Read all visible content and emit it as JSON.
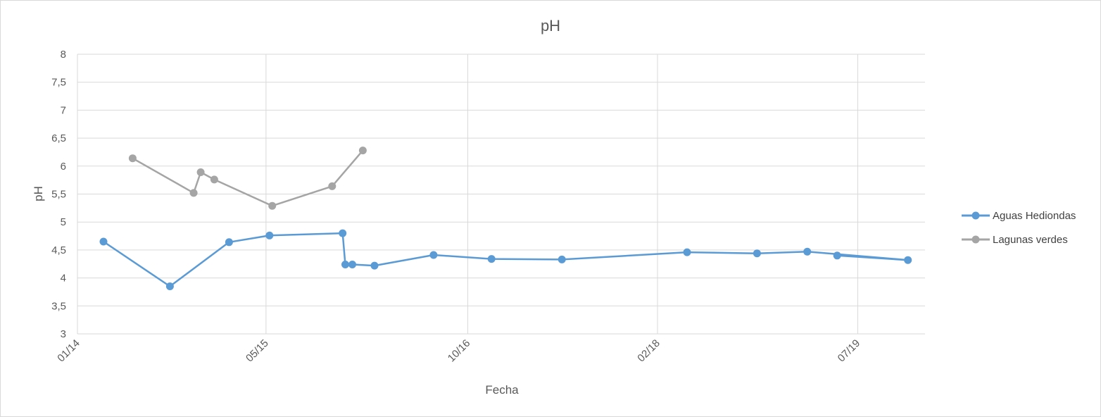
{
  "chart_data": {
    "type": "line",
    "title": "pH",
    "xlabel": "Fecha",
    "ylabel": "pH",
    "ylim": [
      3,
      8
    ],
    "yticks": [
      3,
      3.5,
      4,
      4.5,
      5,
      5.5,
      6,
      6.5,
      7,
      7.5,
      8
    ],
    "ytick_labels": [
      "3",
      "3,5",
      "4",
      "4,5",
      "5",
      "5,5",
      "6",
      "6,5",
      "7",
      "7,5",
      "8"
    ],
    "xlim": [
      "2014-01-01",
      "2019-12-21"
    ],
    "xticks": [
      "2014-01-01",
      "2015-05-01",
      "2016-10-01",
      "2018-02-01",
      "2019-07-01"
    ],
    "xtick_labels": [
      "01/14",
      "05/15",
      "10/16",
      "02/18",
      "07/19"
    ],
    "grid": true,
    "legend_position": "right",
    "series": [
      {
        "name": "Aguas Hediondas",
        "color": "#5b9bd5",
        "points": [
          [
            "2014-03-09",
            4.65
          ],
          [
            "2014-08-27",
            3.85
          ],
          [
            "2015-01-26",
            4.64
          ],
          [
            "2015-05-10",
            4.76
          ],
          [
            "2015-11-14",
            4.8
          ],
          [
            "2015-11-21",
            4.24
          ],
          [
            "2015-12-09",
            4.24
          ],
          [
            "2016-02-04",
            4.22
          ],
          [
            "2016-07-05",
            4.41
          ],
          [
            "2016-12-01",
            4.34
          ],
          [
            "2017-05-31",
            4.33
          ],
          [
            "2018-04-18",
            4.46
          ],
          [
            "2018-10-15",
            4.44
          ],
          [
            "2019-02-21",
            4.47
          ],
          [
            "2019-11-07",
            4.32
          ],
          [
            "2019-05-09",
            4.4
          ]
        ]
      },
      {
        "name": "Lagunas verdes",
        "color": "#a5a5a5",
        "points": [
          [
            "2014-05-23",
            6.14
          ],
          [
            "2014-10-27",
            5.52
          ],
          [
            "2014-11-14",
            5.89
          ],
          [
            "2014-12-19",
            5.76
          ],
          [
            "2015-05-17",
            5.29
          ],
          [
            "2015-10-18",
            5.64
          ],
          [
            "2016-01-05",
            6.28
          ]
        ]
      }
    ]
  },
  "legend": {
    "items": [
      {
        "label": "Aguas Hediondas",
        "color": "#5b9bd5"
      },
      {
        "label": "Lagunas verdes",
        "color": "#a5a5a5"
      }
    ]
  }
}
